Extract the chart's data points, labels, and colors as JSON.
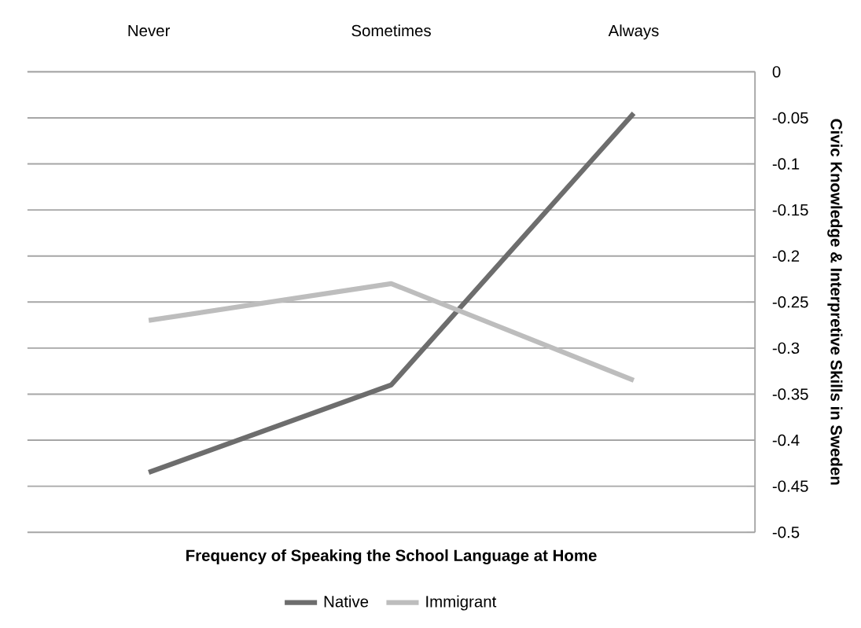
{
  "chart_data": {
    "type": "line",
    "xlabel": "Frequency of Speaking the School Language at Home",
    "ylabel": "Civic Knowledge & Interpretive Skills in Sweden",
    "categories": [
      "Never",
      "Sometimes",
      "Always"
    ],
    "series": [
      {
        "name": "Native",
        "color": "#6d6d6d",
        "values": [
          -0.435,
          -0.34,
          -0.045
        ]
      },
      {
        "name": "Immigrant",
        "color": "#bdbdbd",
        "values": [
          -0.27,
          -0.23,
          -0.335
        ]
      }
    ],
    "ylim": [
      -0.5,
      0
    ],
    "yticks": [
      0,
      -0.05,
      -0.1,
      -0.15,
      -0.2,
      -0.25,
      -0.3,
      -0.35,
      -0.4,
      -0.45,
      -0.5
    ],
    "grid": "y",
    "legend": "bottom"
  }
}
